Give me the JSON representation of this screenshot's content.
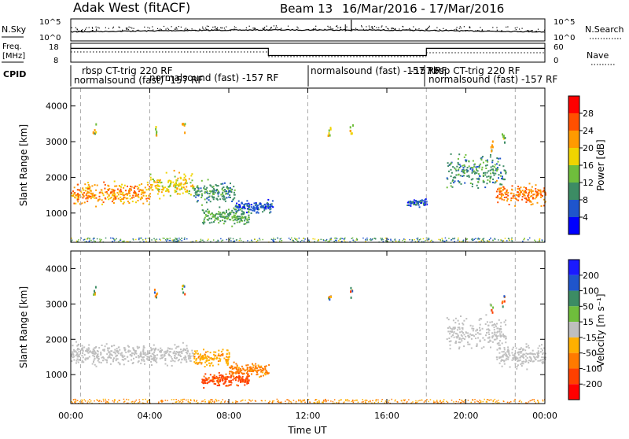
{
  "header": {
    "station": "Adak West (fitACF)",
    "beam": "Beam 13",
    "date_range": "16/Mar/2016 - 17/Mar/2016"
  },
  "nsky_panel": {
    "left_label": "N.Sky",
    "right_label": "N.Search",
    "left_ticks": [
      "10^5",
      "10^0"
    ],
    "right_ticks": [
      "10^5",
      "10^0"
    ]
  },
  "freq_panel": {
    "left_label_1": "Freq.",
    "left_label_2": "[MHz]",
    "right_label": "Nave",
    "left_ticks": [
      "18",
      "8"
    ],
    "right_ticks": [
      "60",
      "0"
    ],
    "freq_steps": [
      {
        "t0": 0.0,
        "t1": 10.0,
        "value": 16.5
      },
      {
        "t0": 10.0,
        "t1": 18.0,
        "value": 10.8
      },
      {
        "t0": 18.0,
        "t1": 24.0,
        "value": 16.5
      }
    ]
  },
  "cpid": {
    "label": "CPID",
    "segments": [
      {
        "t": 0.0,
        "row1": "rbsp CT-trig 220 RF",
        "row2": "normalsound (fast) -157 RF"
      },
      {
        "t": 12.0,
        "row1": "normalsound (fast) -157 RF",
        "row2": ""
      },
      {
        "t": 18.0,
        "row1": "rbsp CT-trig 220 RF",
        "row2": "normalsound (fast) -157 RF"
      }
    ],
    "overlap_labels": [
      {
        "t": 4.0,
        "row2": "normalsound (fast) -157 RF"
      },
      {
        "t": 17.5,
        "row1": "-157 RF"
      }
    ]
  },
  "axes": {
    "y_label": "Slant Range [km]",
    "x_label": "Time UT",
    "x_ticks": [
      "00:00",
      "04:00",
      "08:00",
      "12:00",
      "16:00",
      "20:00",
      "00:00"
    ],
    "y_ticks": [
      "1000",
      "2000",
      "3000",
      "4000"
    ]
  },
  "power_colorbar": {
    "label": "Power [dB]",
    "ticks": [
      "4",
      "8",
      "12",
      "16",
      "20",
      "24",
      "28"
    ],
    "colors": [
      "#0000ff",
      "#1f55cc",
      "#3c8c64",
      "#6fbe3c",
      "#f0d400",
      "#ff9a00",
      "#ff5000",
      "#ff0000"
    ]
  },
  "velocity_colorbar": {
    "label": "Velocity [m s⁻¹]",
    "ticks": [
      "200",
      "100",
      "50",
      "15",
      "-15",
      "-50",
      "-100",
      "-200"
    ],
    "colors": [
      "#1a1aff",
      "#1f55cc",
      "#3c8c64",
      "#6fbe3c",
      "#bfbfbf",
      "#ffb000",
      "#ff7a00",
      "#ff4000",
      "#ff0000"
    ]
  },
  "chart_data": {
    "type": "heatmap",
    "title": "Adak West (fitACF) Beam 13 16/Mar/2016 - 17/Mar/2016",
    "xlabel": "Time UT",
    "ylabel": "Slant Range [km]",
    "xlim": [
      0,
      24
    ],
    "ylim": [
      180,
      4500
    ],
    "dashed_time_markers": [
      0.5,
      4.0,
      12.0,
      18.0,
      22.5
    ],
    "power_clusters": [
      {
        "t0": 0.0,
        "t1": 4.0,
        "r_center": 1560,
        "r_halfwidth": 230,
        "power_dB": 22
      },
      {
        "t0": 4.0,
        "t1": 6.2,
        "r_center": 1800,
        "r_halfwidth": 250,
        "power_dB": 18
      },
      {
        "t0": 6.2,
        "t1": 8.3,
        "r_center": 1600,
        "r_halfwidth": 230,
        "power_dB": 10
      },
      {
        "t0": 8.3,
        "t1": 10.2,
        "r_center": 1200,
        "r_halfwidth": 130,
        "power_dB": 6
      },
      {
        "t0": 6.6,
        "t1": 9.0,
        "r_center": 930,
        "r_halfwidth": 180,
        "power_dB": 12
      },
      {
        "t0": 17.0,
        "t1": 18.0,
        "r_center": 1300,
        "r_halfwidth": 80,
        "power_dB": 6
      },
      {
        "t0": 19.0,
        "t1": 22.0,
        "r_center": 2200,
        "r_halfwidth": 350,
        "power_dB": 10
      },
      {
        "t0": 21.5,
        "t1": 24.0,
        "r_center": 1550,
        "r_halfwidth": 230,
        "power_dB": 24
      }
    ],
    "velocity_clusters": [
      {
        "t0": 0.0,
        "t1": 6.2,
        "r_center": 1600,
        "r_halfwidth": 220,
        "velocity": 0
      },
      {
        "t0": 6.2,
        "t1": 8.0,
        "r_center": 1500,
        "r_halfwidth": 180,
        "velocity": -40
      },
      {
        "t0": 8.0,
        "t1": 10.0,
        "r_center": 1150,
        "r_halfwidth": 140,
        "velocity": -60
      },
      {
        "t0": 6.6,
        "t1": 9.0,
        "r_center": 880,
        "r_halfwidth": 140,
        "velocity": -110
      },
      {
        "t0": 19.0,
        "t1": 22.0,
        "r_center": 2200,
        "r_halfwidth": 350,
        "velocity": 0
      },
      {
        "t0": 21.5,
        "t1": 24.0,
        "r_center": 1550,
        "r_halfwidth": 230,
        "velocity": 0
      }
    ]
  }
}
